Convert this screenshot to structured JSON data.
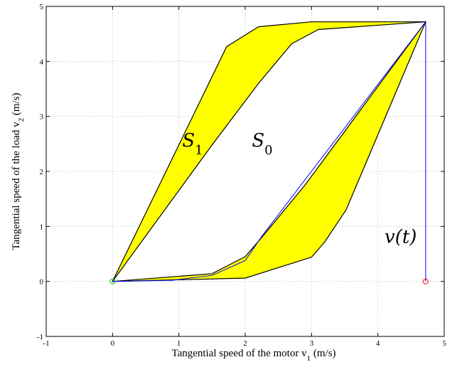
{
  "chart_data": {
    "type": "line",
    "xlabel": "Tangential speed of the motor v",
    "xlabel_sub": "1",
    "xlabel_unit": " (m/s)",
    "ylabel": "Tangential speed of the load v",
    "ylabel_sub": "2",
    "ylabel_unit": " (m/s)",
    "xlim": [
      -1,
      5
    ],
    "ylim": [
      -1,
      5
    ],
    "xticks": [
      -1,
      0,
      1,
      2,
      3,
      4,
      5
    ],
    "yticks": [
      -1,
      0,
      1,
      2,
      3,
      4,
      5
    ],
    "grid": true,
    "colors": {
      "fill": "#ffff00",
      "boundary": "#000000",
      "trajectory": "#0000ff",
      "start": "#00cc00",
      "end": "#ff0000"
    },
    "regions": {
      "S1_outer": [
        [
          0,
          0
        ],
        [
          1.72,
          4.27
        ],
        [
          2.2,
          4.63
        ],
        [
          3.0,
          4.72
        ],
        [
          4.72,
          4.72
        ],
        [
          3.52,
          1.3
        ],
        [
          3.2,
          0.72
        ],
        [
          3.0,
          0.44
        ],
        [
          2.0,
          0.06
        ],
        [
          0,
          0
        ]
      ],
      "S0_inner": [
        [
          0,
          0
        ],
        [
          1.5,
          2.48
        ],
        [
          2.2,
          3.6
        ],
        [
          2.7,
          4.32
        ],
        [
          3.1,
          4.58
        ],
        [
          4.72,
          4.72
        ],
        [
          2.9,
          1.75
        ],
        [
          2.25,
          0.8
        ],
        [
          2.0,
          0.45
        ],
        [
          1.5,
          0.14
        ],
        [
          0,
          0
        ]
      ]
    },
    "trajectory": [
      [
        0,
        0
      ],
      [
        0.9,
        0.02
      ],
      [
        1.5,
        0.11
      ],
      [
        2.0,
        0.38
      ],
      [
        2.25,
        0.82
      ],
      [
        4.72,
        4.72
      ],
      [
        4.72,
        0
      ]
    ],
    "markers": {
      "start": [
        0,
        0
      ],
      "end": [
        4.72,
        0
      ]
    },
    "annotations": [
      {
        "text": "S",
        "sub": "1",
        "x": 1.05,
        "y": 2.45
      },
      {
        "text": "S",
        "sub": "0",
        "x": 2.1,
        "y": 2.45
      },
      {
        "text": "v(t)",
        "x": 4.1,
        "y": 0.7
      }
    ]
  }
}
